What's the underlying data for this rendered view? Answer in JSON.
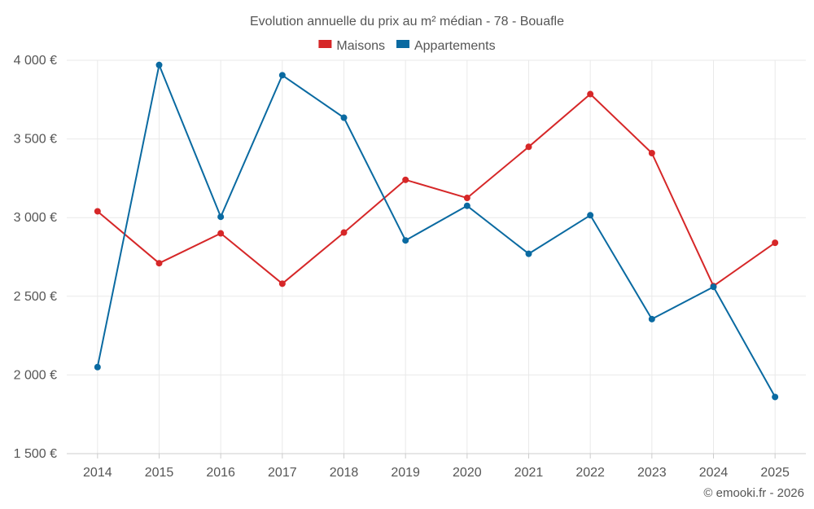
{
  "chart_data": {
    "type": "line",
    "title": "Evolution annuelle du prix au m² médian - 78 - Bouafle",
    "categories": [
      "2014",
      "2015",
      "2016",
      "2017",
      "2018",
      "2019",
      "2020",
      "2021",
      "2022",
      "2023",
      "2024",
      "2025"
    ],
    "series": [
      {
        "name": "Maisons",
        "color": "#d62728",
        "values": [
          3040,
          2710,
          2900,
          2580,
          2905,
          3240,
          3125,
          3450,
          3785,
          3410,
          2565,
          2840
        ]
      },
      {
        "name": "Appartements",
        "color": "#0a6aa1",
        "values": [
          2050,
          3970,
          3005,
          3905,
          3635,
          2855,
          3075,
          2770,
          3015,
          2355,
          2560,
          1860
        ]
      }
    ],
    "yticks": [
      1500,
      2000,
      2500,
      3000,
      3500,
      4000
    ],
    "ytick_labels": [
      "1 500 €",
      "2 000 €",
      "2 500 €",
      "3 000 €",
      "3 500 €",
      "4 000 €"
    ],
    "ylim": [
      1500,
      4000
    ],
    "xlabel": "",
    "ylabel": "",
    "grid": true,
    "legend": "top-center"
  },
  "credit": "© emooki.fr - 2026"
}
